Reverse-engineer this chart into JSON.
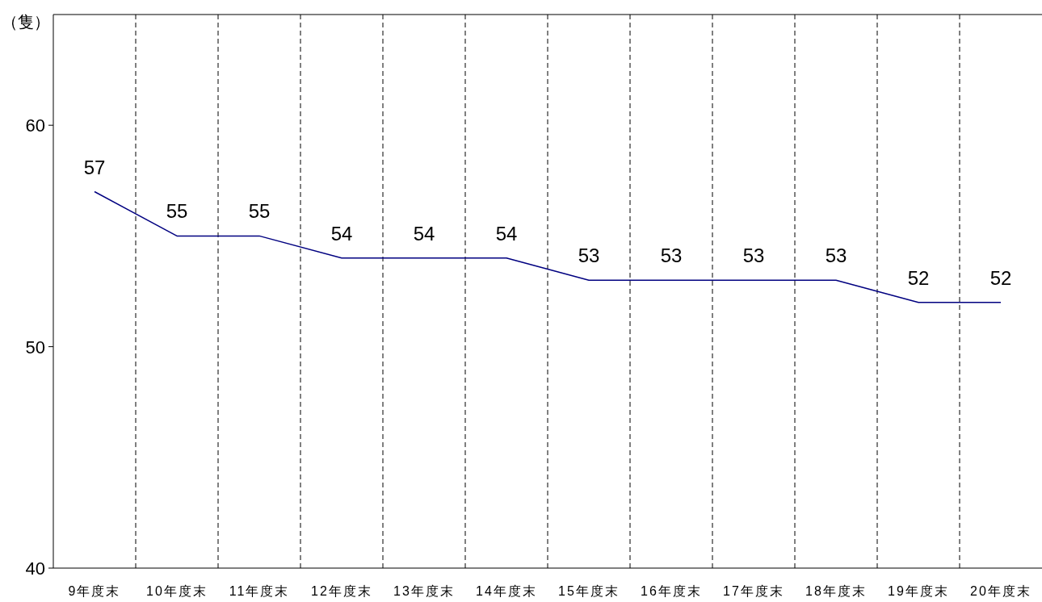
{
  "chart_data": {
    "type": "line",
    "ylabel": "（隻）",
    "categories": [
      "9年度末",
      "10年度末",
      "11年度末",
      "12年度末",
      "13年度末",
      "14年度末",
      "15年度末",
      "16年度末",
      "17年度末",
      "18年度末",
      "19年度末",
      "20年度末"
    ],
    "series": [
      {
        "color": "#000080",
        "values": [
          57,
          55,
          55,
          54,
          54,
          54,
          53,
          53,
          53,
          53,
          52,
          52
        ]
      }
    ],
    "ylim": [
      40,
      65
    ],
    "yticks": [
      40,
      50,
      60
    ],
    "grid": "x",
    "data_labels": true,
    "marker": "none",
    "line_style": "solid"
  }
}
